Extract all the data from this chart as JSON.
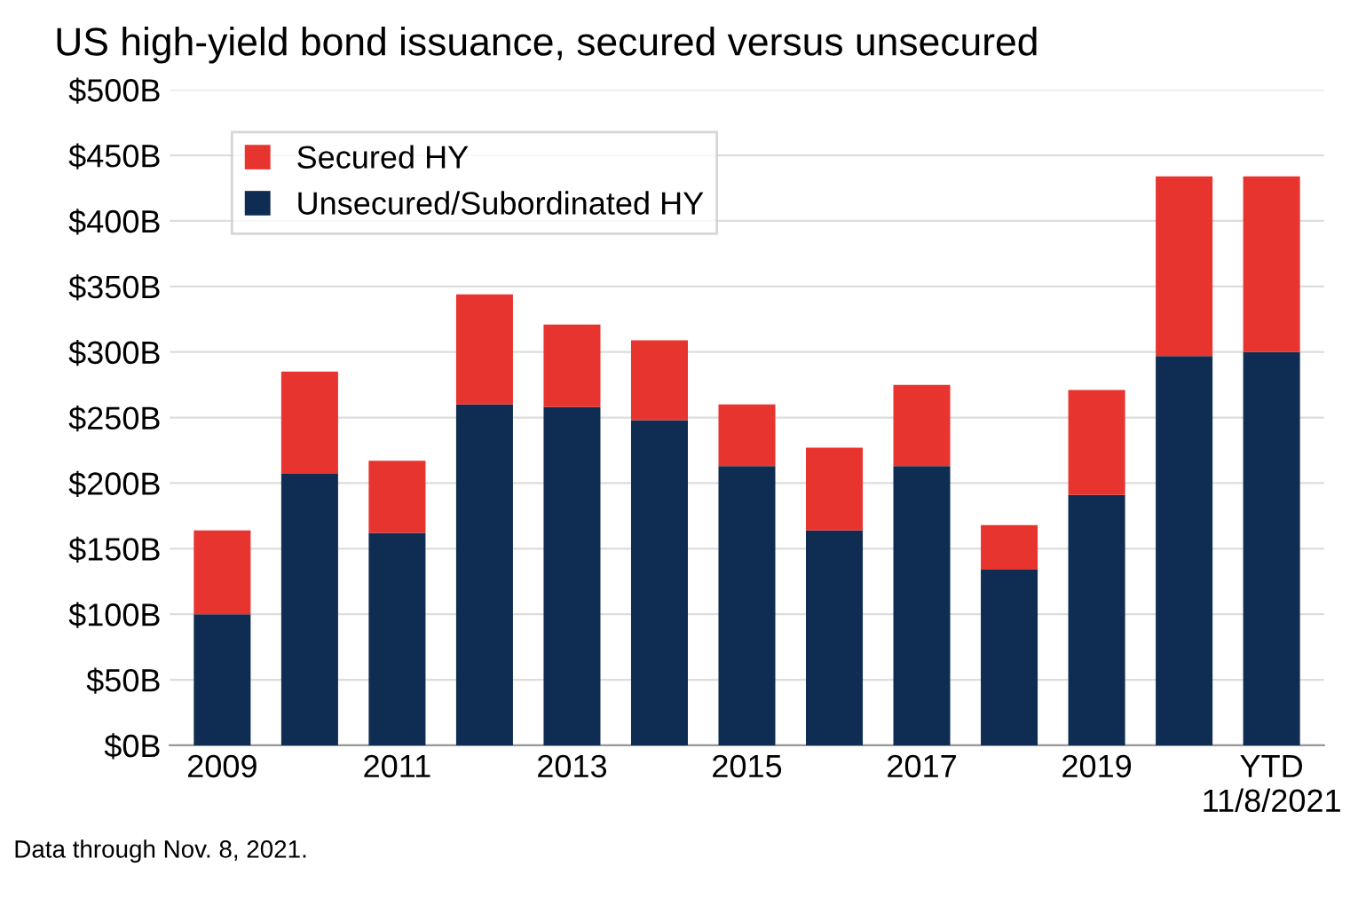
{
  "chart_data": {
    "type": "bar",
    "title": "US high-yield bond issuance, secured versus unsecured",
    "categories": [
      "2009",
      null,
      "2011",
      null,
      "2013",
      null,
      "2015",
      null,
      "2017",
      null,
      "2019",
      null,
      "YTD\n11/8/2021"
    ],
    "series": [
      {
        "name": "Unsecured/Subordinated HY",
        "color": "#0f2d52",
        "values": [
          100,
          207,
          162,
          260,
          258,
          248,
          213,
          164,
          213,
          134,
          191,
          297,
          300
        ]
      },
      {
        "name": "Secured HY",
        "color": "#e8342e",
        "values": [
          64,
          78,
          55,
          84,
          63,
          61,
          47,
          63,
          62,
          34,
          80,
          137,
          134
        ]
      }
    ],
    "stacked": true,
    "ylim": [
      0,
      500
    ],
    "yticks": [
      {
        "value": 0,
        "label": "$0B"
      },
      {
        "value": 50,
        "label": "$50B"
      },
      {
        "value": 100,
        "label": "$100B"
      },
      {
        "value": 150,
        "label": "$150B"
      },
      {
        "value": 200,
        "label": "$200B"
      },
      {
        "value": 250,
        "label": "$250B"
      },
      {
        "value": 300,
        "label": "$300B"
      },
      {
        "value": 350,
        "label": "$350B"
      },
      {
        "value": 400,
        "label": "$400B"
      },
      {
        "value": 450,
        "label": "$450B"
      },
      {
        "value": 500,
        "label": "$500B"
      }
    ],
    "grid": "y",
    "legend": "top left",
    "annotations": [
      "Data through Nov. 8, 2021."
    ]
  }
}
